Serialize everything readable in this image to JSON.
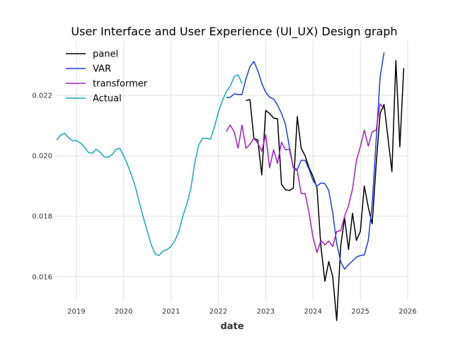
{
  "chart_data": {
    "type": "line",
    "title": "User Interface and User Experience (UI_UX) Design graph",
    "xlabel": "date",
    "ylabel": "",
    "xlim": [
      "2018-08",
      "2026-01"
    ],
    "ylim": [
      0.0152,
      0.0238
    ],
    "x_ticks": [
      "2019",
      "2020",
      "2021",
      "2022",
      "2023",
      "2024",
      "2025",
      "2026"
    ],
    "y_ticks": [
      "0.016",
      "0.018",
      "0.020",
      "0.022"
    ],
    "grid": true,
    "legend_position": "top-left",
    "series": [
      {
        "name": "panel",
        "color": "#000000",
        "points": [
          [
            "2022-08",
            0.02183
          ],
          [
            "2022-09",
            0.02186
          ],
          [
            "2022-10",
            0.02058
          ],
          [
            "2022-11",
            0.02052
          ],
          [
            "2022-12",
            0.01937
          ],
          [
            "2023-01",
            0.0215
          ],
          [
            "2023-02",
            0.0214
          ],
          [
            "2023-03",
            0.02125
          ],
          [
            "2023-04",
            0.02122
          ],
          [
            "2023-05",
            0.01905
          ],
          [
            "2023-06",
            0.01888
          ],
          [
            "2023-07",
            0.01885
          ],
          [
            "2023-08",
            0.01893
          ],
          [
            "2023-09",
            0.0213
          ],
          [
            "2023-10",
            0.02025
          ],
          [
            "2023-11",
            0.02
          ],
          [
            "2023-12",
            0.0196
          ],
          [
            "2024-01",
            0.01932
          ],
          [
            "2024-02",
            0.01895
          ],
          [
            "2024-03",
            0.017
          ],
          [
            "2024-04",
            0.01585
          ],
          [
            "2024-05",
            0.0165
          ],
          [
            "2024-06",
            0.016
          ],
          [
            "2024-07",
            0.01455
          ],
          [
            "2024-08",
            0.017
          ],
          [
            "2024-09",
            0.01795
          ],
          [
            "2024-10",
            0.0169
          ],
          [
            "2024-11",
            0.0181
          ],
          [
            "2024-12",
            0.0172
          ],
          [
            "2025-01",
            0.0175
          ],
          [
            "2025-02",
            0.019
          ],
          [
            "2025-03",
            0.0183
          ],
          [
            "2025-04",
            0.01775
          ],
          [
            "2025-05",
            0.0197
          ],
          [
            "2025-06",
            0.0214
          ],
          [
            "2025-07",
            0.0217
          ],
          [
            "2025-08",
            0.0206
          ],
          [
            "2025-09",
            0.01948
          ],
          [
            "2025-10",
            0.02315
          ],
          [
            "2025-11",
            0.0203
          ],
          [
            "2025-12",
            0.0229
          ]
        ]
      },
      {
        "name": "VAR",
        "color": "#1f3fd8",
        "points": [
          [
            "2022-03",
            0.02193
          ],
          [
            "2022-04",
            0.02193
          ],
          [
            "2022-05",
            0.02205
          ],
          [
            "2022-06",
            0.02203
          ],
          [
            "2022-07",
            0.02203
          ],
          [
            "2022-08",
            0.02255
          ],
          [
            "2022-09",
            0.02295
          ],
          [
            "2022-10",
            0.02312
          ],
          [
            "2022-11",
            0.02282
          ],
          [
            "2022-12",
            0.0224
          ],
          [
            "2023-01",
            0.0221
          ],
          [
            "2023-02",
            0.02194
          ],
          [
            "2023-03",
            0.02188
          ],
          [
            "2023-04",
            0.02168
          ],
          [
            "2023-05",
            0.0214
          ],
          [
            "2023-06",
            0.02105
          ],
          [
            "2023-07",
            0.0203
          ],
          [
            "2023-08",
            0.0196
          ],
          [
            "2023-09",
            0.01955
          ],
          [
            "2023-10",
            0.01985
          ],
          [
            "2023-11",
            0.01985
          ],
          [
            "2023-12",
            0.01955
          ],
          [
            "2024-01",
            0.01918
          ],
          [
            "2024-02",
            0.019
          ],
          [
            "2024-03",
            0.0191
          ],
          [
            "2024-04",
            0.01908
          ],
          [
            "2024-05",
            0.01885
          ],
          [
            "2024-06",
            0.0181
          ],
          [
            "2024-07",
            0.0171
          ],
          [
            "2024-08",
            0.0165
          ],
          [
            "2024-09",
            0.01625
          ],
          [
            "2024-10",
            0.0164
          ],
          [
            "2024-11",
            0.01652
          ],
          [
            "2024-12",
            0.01665
          ],
          [
            "2025-01",
            0.0167
          ],
          [
            "2025-02",
            0.01672
          ],
          [
            "2025-03",
            0.0172
          ],
          [
            "2025-04",
            0.0184
          ],
          [
            "2025-05",
            0.0205
          ],
          [
            "2025-06",
            0.0226
          ],
          [
            "2025-07",
            0.02342
          ]
        ]
      },
      {
        "name": "transformer",
        "color": "#a020c0",
        "points": [
          [
            "2022-03",
            0.0208
          ],
          [
            "2022-04",
            0.02102
          ],
          [
            "2022-05",
            0.0208
          ],
          [
            "2022-06",
            0.02025
          ],
          [
            "2022-07",
            0.02102
          ],
          [
            "2022-08",
            0.02025
          ],
          [
            "2022-09",
            0.02038
          ],
          [
            "2022-10",
            0.02058
          ],
          [
            "2022-11",
            0.02042
          ],
          [
            "2022-12",
            0.02015
          ],
          [
            "2023-01",
            0.0207
          ],
          [
            "2023-02",
            0.0196
          ],
          [
            "2023-03",
            0.0202
          ],
          [
            "2023-04",
            0.01975
          ],
          [
            "2023-05",
            0.02045
          ],
          [
            "2023-06",
            0.0202
          ],
          [
            "2023-07",
            0.02022
          ],
          [
            "2023-08",
            0.0196
          ],
          [
            "2023-09",
            0.0195
          ],
          [
            "2023-10",
            0.01875
          ],
          [
            "2023-11",
            0.01875
          ],
          [
            "2023-12",
            0.0181
          ],
          [
            "2024-01",
            0.0173
          ],
          [
            "2024-02",
            0.0168
          ],
          [
            "2024-03",
            0.0172
          ],
          [
            "2024-04",
            0.01705
          ],
          [
            "2024-05",
            0.01718
          ],
          [
            "2024-06",
            0.017
          ],
          [
            "2024-07",
            0.0175
          ],
          [
            "2024-08",
            0.01752
          ],
          [
            "2024-09",
            0.018
          ],
          [
            "2024-10",
            0.01835
          ],
          [
            "2024-11",
            0.0189
          ],
          [
            "2024-12",
            0.01985
          ],
          [
            "2025-01",
            0.0203
          ],
          [
            "2025-02",
            0.02085
          ],
          [
            "2025-03",
            0.02032
          ],
          [
            "2025-04",
            0.0208
          ],
          [
            "2025-05",
            0.02085
          ],
          [
            "2025-06",
            0.02172
          ],
          [
            "2025-07",
            0.02155
          ]
        ]
      },
      {
        "name": "Actual",
        "color": "#17a9b5",
        "points": [
          [
            "2018-08",
            0.02052
          ],
          [
            "2018-09",
            0.02068
          ],
          [
            "2018-10",
            0.02075
          ],
          [
            "2018-11",
            0.0206
          ],
          [
            "2018-12",
            0.0205
          ],
          [
            "2019-01",
            0.0205
          ],
          [
            "2019-02",
            0.02043
          ],
          [
            "2019-03",
            0.0203
          ],
          [
            "2019-04",
            0.02012
          ],
          [
            "2019-05",
            0.02008
          ],
          [
            "2019-06",
            0.02022
          ],
          [
            "2019-07",
            0.02012
          ],
          [
            "2019-08",
            0.01997
          ],
          [
            "2019-09",
            0.01995
          ],
          [
            "2019-10",
            0.02003
          ],
          [
            "2019-11",
            0.0202
          ],
          [
            "2019-12",
            0.02025
          ],
          [
            "2020-01",
            0.02
          ],
          [
            "2020-02",
            0.0197
          ],
          [
            "2020-03",
            0.01935
          ],
          [
            "2020-04",
            0.01895
          ],
          [
            "2020-05",
            0.01845
          ],
          [
            "2020-06",
            0.01795
          ],
          [
            "2020-07",
            0.0175
          ],
          [
            "2020-08",
            0.01705
          ],
          [
            "2020-09",
            0.01675
          ],
          [
            "2020-10",
            0.0167
          ],
          [
            "2020-11",
            0.01685
          ],
          [
            "2020-12",
            0.0169
          ],
          [
            "2021-01",
            0.017
          ],
          [
            "2021-02",
            0.0172
          ],
          [
            "2021-03",
            0.0175
          ],
          [
            "2021-04",
            0.018
          ],
          [
            "2021-05",
            0.0184
          ],
          [
            "2021-06",
            0.0189
          ],
          [
            "2021-07",
            0.01975
          ],
          [
            "2021-08",
            0.02035
          ],
          [
            "2021-09",
            0.02058
          ],
          [
            "2021-10",
            0.02058
          ],
          [
            "2021-11",
            0.02055
          ],
          [
            "2021-12",
            0.02095
          ],
          [
            "2022-01",
            0.02145
          ],
          [
            "2022-02",
            0.02182
          ],
          [
            "2022-03",
            0.02212
          ],
          [
            "2022-04",
            0.0223
          ],
          [
            "2022-05",
            0.02262
          ],
          [
            "2022-06",
            0.02268
          ],
          [
            "2022-07",
            0.0224
          ]
        ]
      }
    ]
  }
}
